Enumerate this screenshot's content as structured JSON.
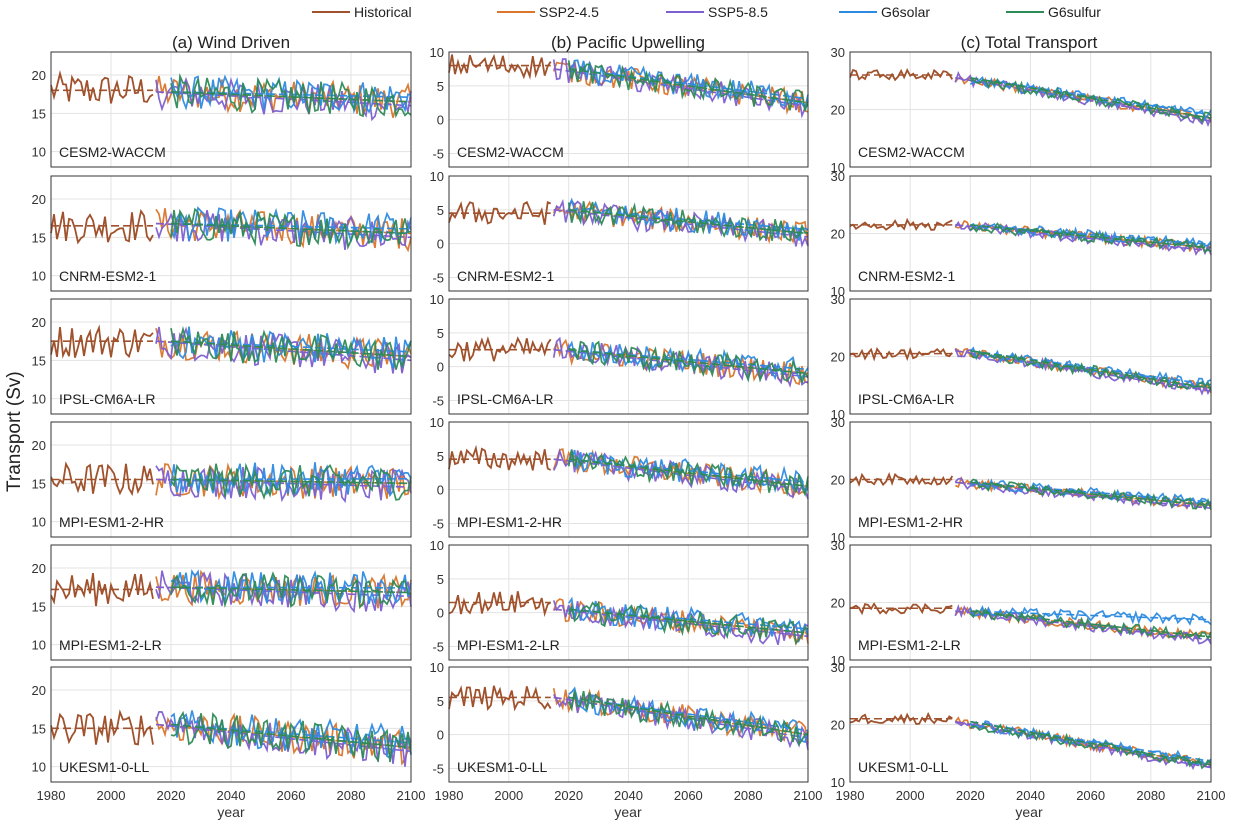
{
  "chart_data": {
    "type": "line",
    "ylabel": "Transport (Sv)",
    "xlabel": "year",
    "xlim": [
      1980,
      2100
    ],
    "xticks": [
      1980,
      2000,
      2020,
      2040,
      2060,
      2080,
      2100
    ],
    "grid": true,
    "legend_position": "top-center",
    "legend": [
      {
        "name": "Historical",
        "color": "#A0522D"
      },
      {
        "name": "SSP2-4.5",
        "color": "#D9762B"
      },
      {
        "name": "SSP5-8.5",
        "color": "#7E5FD0"
      },
      {
        "name": "G6solar",
        "color": "#2E8BE0"
      },
      {
        "name": "G6sulfur",
        "color": "#2E8B57"
      }
    ],
    "columns": [
      {
        "title": "(a) Wind Driven",
        "ylim": [
          8,
          23
        ],
        "yticks": [
          10,
          15,
          20
        ]
      },
      {
        "title": "(b) Pacific Upwelling",
        "ylim": [
          -7,
          10
        ],
        "yticks": [
          -5,
          0,
          5,
          10
        ]
      },
      {
        "title": "(c) Total Transport",
        "ylim": [
          10,
          30
        ],
        "yticks": [
          10,
          20,
          30
        ]
      }
    ],
    "models": [
      "CESM2-WACCM",
      "CNRM-ESM2-1",
      "IPSL-CM6A-LR",
      "MPI-ESM1-2-HR",
      "MPI-ESM1-2-LR",
      "UKESM1-0-LL"
    ],
    "trend_anchors": {
      "note": "mean levels (Sv) read from plot: historical mean, start (2015) and end (2100) of scenario trends, per column per model",
      "a": [
        [
          18,
          17.8,
          16.5
        ],
        [
          16.5,
          16.8,
          15.5
        ],
        [
          17.5,
          17.5,
          15.5
        ],
        [
          15.5,
          15.5,
          15.0
        ],
        [
          17.2,
          17.5,
          16.8
        ],
        [
          15.0,
          15.5,
          12.5
        ]
      ],
      "b": [
        [
          8,
          7.5,
          2.5
        ],
        [
          4.5,
          5.0,
          1.5
        ],
        [
          2.5,
          2.5,
          -1.0
        ],
        [
          4.5,
          4.5,
          0.5
        ],
        [
          1.5,
          0.5,
          -3.0
        ],
        [
          5.5,
          5.5,
          0.0
        ]
      ],
      "c": [
        [
          26,
          25.5,
          18.5
        ],
        [
          21.5,
          21.5,
          17.5
        ],
        [
          20.5,
          21.0,
          14.5
        ],
        [
          20.0,
          19.5,
          15.5
        ],
        [
          19.0,
          18.5,
          14.0
        ],
        [
          21.0,
          20.5,
          13.0
        ]
      ]
    }
  }
}
